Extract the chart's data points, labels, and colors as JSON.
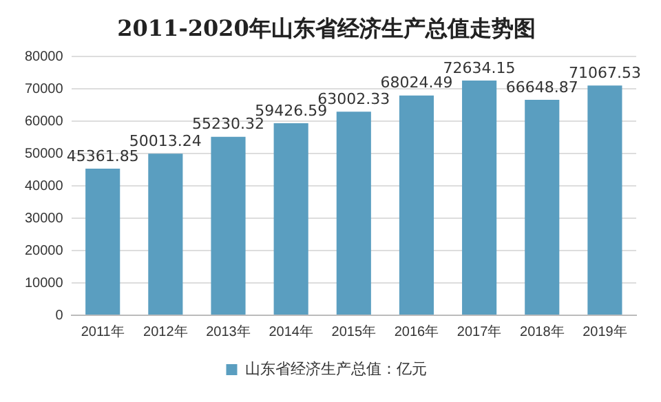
{
  "chart_data": {
    "type": "bar",
    "title": "2011-2020年山东省经济生产总值走势图",
    "categories": [
      "2011年",
      "2012年",
      "2013年",
      "2014年",
      "2015年",
      "2016年",
      "2017年",
      "2018年",
      "2019年"
    ],
    "series": [
      {
        "name": "山东省经济生产总值：亿元",
        "color": "#5a9ec0",
        "values": [
          45361.85,
          50013.24,
          55230.32,
          59426.59,
          63002.33,
          68024.49,
          72634.15,
          66648.87,
          71067.53
        ]
      }
    ],
    "ylim": [
      0,
      80000
    ],
    "yticks": [
      0,
      10000,
      20000,
      30000,
      40000,
      50000,
      60000,
      70000,
      80000
    ],
    "grid": "y",
    "legend": "bottom",
    "data_labels": true
  }
}
